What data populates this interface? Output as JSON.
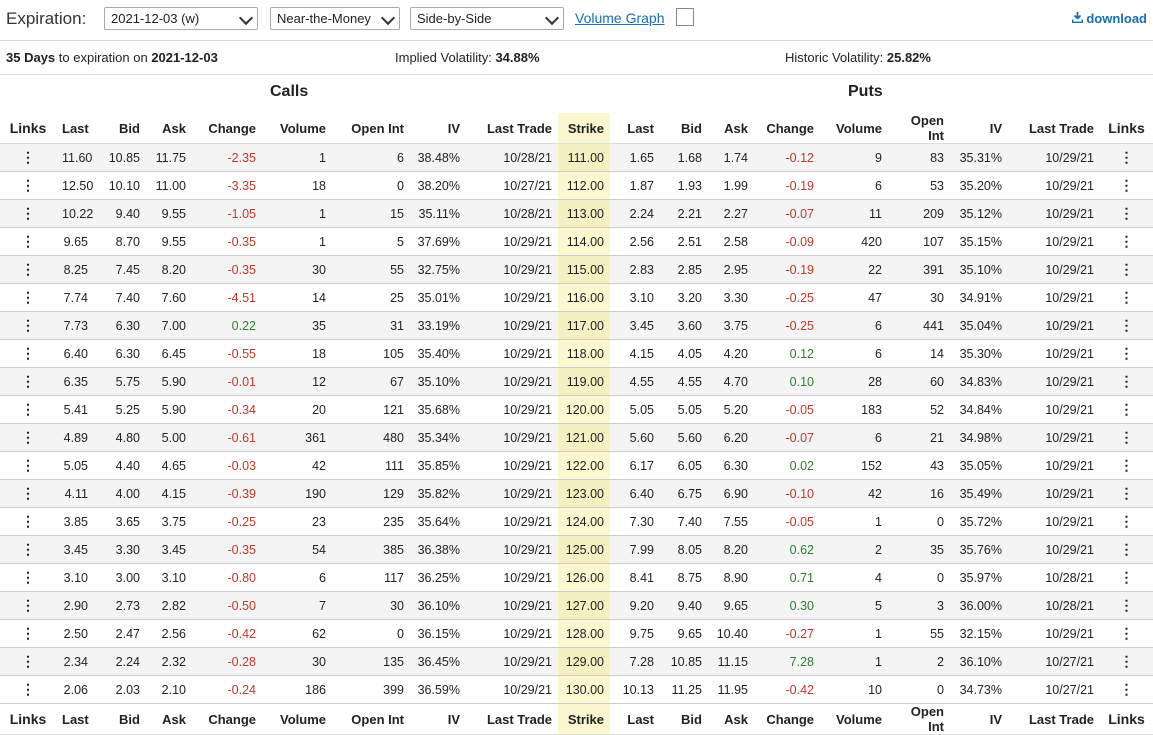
{
  "toolbar": {
    "expiration_label": "Expiration:",
    "expiration_value": "2021-12-03 (w)",
    "range_value": "Near-the-Money",
    "view_value": "Side-by-Side",
    "volume_graph_label": "Volume Graph",
    "download_label": "download"
  },
  "info": {
    "days": "35 Days",
    "to_expiration_text": "to expiration on",
    "expiration_date": "2021-12-03",
    "iv_label": "Implied Volatility:",
    "iv_value": "34.88%",
    "hv_label": "Historic Volatility:",
    "hv_value": "25.82%"
  },
  "sections": {
    "calls": "Calls",
    "puts": "Puts"
  },
  "columns": [
    "Links",
    "Last",
    "Bid",
    "Ask",
    "Change",
    "Volume",
    "Open Int",
    "IV",
    "Last Trade",
    "Strike",
    "Last",
    "Bid",
    "Ask",
    "Change",
    "Volume",
    "Open Int",
    "IV",
    "Last Trade",
    "Links"
  ],
  "links_glyph": "⋮",
  "rows": [
    [
      "11.60",
      "10.85",
      "11.75",
      "-2.35",
      "1",
      "6",
      "38.48%",
      "10/28/21",
      "111.00",
      "1.65",
      "1.68",
      "1.74",
      "-0.12",
      "9",
      "83",
      "35.31%",
      "10/29/21"
    ],
    [
      "12.50",
      "10.10",
      "11.00",
      "-3.35",
      "18",
      "0",
      "38.20%",
      "10/27/21",
      "112.00",
      "1.87",
      "1.93",
      "1.99",
      "-0.19",
      "6",
      "53",
      "35.20%",
      "10/29/21"
    ],
    [
      "10.22",
      "9.40",
      "9.55",
      "-1.05",
      "1",
      "15",
      "35.11%",
      "10/28/21",
      "113.00",
      "2.24",
      "2.21",
      "2.27",
      "-0.07",
      "11",
      "209",
      "35.12%",
      "10/29/21"
    ],
    [
      "9.65",
      "8.70",
      "9.55",
      "-0.35",
      "1",
      "5",
      "37.69%",
      "10/29/21",
      "114.00",
      "2.56",
      "2.51",
      "2.58",
      "-0.09",
      "420",
      "107",
      "35.15%",
      "10/29/21"
    ],
    [
      "8.25",
      "7.45",
      "8.20",
      "-0.35",
      "30",
      "55",
      "32.75%",
      "10/29/21",
      "115.00",
      "2.83",
      "2.85",
      "2.95",
      "-0.19",
      "22",
      "391",
      "35.10%",
      "10/29/21"
    ],
    [
      "7.74",
      "7.40",
      "7.60",
      "-4.51",
      "14",
      "25",
      "35.01%",
      "10/29/21",
      "116.00",
      "3.10",
      "3.20",
      "3.30",
      "-0.25",
      "47",
      "30",
      "34.91%",
      "10/29/21"
    ],
    [
      "7.73",
      "6.30",
      "7.00",
      "0.22",
      "35",
      "31",
      "33.19%",
      "10/29/21",
      "117.00",
      "3.45",
      "3.60",
      "3.75",
      "-0.25",
      "6",
      "441",
      "35.04%",
      "10/29/21"
    ],
    [
      "6.40",
      "6.30",
      "6.45",
      "-0.55",
      "18",
      "105",
      "35.40%",
      "10/29/21",
      "118.00",
      "4.15",
      "4.05",
      "4.20",
      "0.12",
      "6",
      "14",
      "35.30%",
      "10/29/21"
    ],
    [
      "6.35",
      "5.75",
      "5.90",
      "-0.01",
      "12",
      "67",
      "35.10%",
      "10/29/21",
      "119.00",
      "4.55",
      "4.55",
      "4.70",
      "0.10",
      "28",
      "60",
      "34.83%",
      "10/29/21"
    ],
    [
      "5.41",
      "5.25",
      "5.90",
      "-0.34",
      "20",
      "121",
      "35.68%",
      "10/29/21",
      "120.00",
      "5.05",
      "5.05",
      "5.20",
      "-0.05",
      "183",
      "52",
      "34.84%",
      "10/29/21"
    ],
    [
      "4.89",
      "4.80",
      "5.00",
      "-0.61",
      "361",
      "480",
      "35.34%",
      "10/29/21",
      "121.00",
      "5.60",
      "5.60",
      "6.20",
      "-0.07",
      "6",
      "21",
      "34.98%",
      "10/29/21"
    ],
    [
      "5.05",
      "4.40",
      "4.65",
      "-0.03",
      "42",
      "111",
      "35.85%",
      "10/29/21",
      "122.00",
      "6.17",
      "6.05",
      "6.30",
      "0.02",
      "152",
      "43",
      "35.05%",
      "10/29/21"
    ],
    [
      "4.11",
      "4.00",
      "4.15",
      "-0.39",
      "190",
      "129",
      "35.82%",
      "10/29/21",
      "123.00",
      "6.40",
      "6.75",
      "6.90",
      "-0.10",
      "42",
      "16",
      "35.49%",
      "10/29/21"
    ],
    [
      "3.85",
      "3.65",
      "3.75",
      "-0.25",
      "23",
      "235",
      "35.64%",
      "10/29/21",
      "124.00",
      "7.30",
      "7.40",
      "7.55",
      "-0.05",
      "1",
      "0",
      "35.72%",
      "10/29/21"
    ],
    [
      "3.45",
      "3.30",
      "3.45",
      "-0.35",
      "54",
      "385",
      "36.38%",
      "10/29/21",
      "125.00",
      "7.99",
      "8.05",
      "8.20",
      "0.62",
      "2",
      "35",
      "35.76%",
      "10/29/21"
    ],
    [
      "3.10",
      "3.00",
      "3.10",
      "-0.80",
      "6",
      "117",
      "36.25%",
      "10/29/21",
      "126.00",
      "8.41",
      "8.75",
      "8.90",
      "0.71",
      "4",
      "0",
      "35.97%",
      "10/28/21"
    ],
    [
      "2.90",
      "2.73",
      "2.82",
      "-0.50",
      "7",
      "30",
      "36.10%",
      "10/29/21",
      "127.00",
      "9.20",
      "9.40",
      "9.65",
      "0.30",
      "5",
      "3",
      "36.00%",
      "10/28/21"
    ],
    [
      "2.50",
      "2.47",
      "2.56",
      "-0.42",
      "62",
      "0",
      "36.15%",
      "10/29/21",
      "128.00",
      "9.75",
      "9.65",
      "10.40",
      "-0.27",
      "1",
      "55",
      "32.15%",
      "10/29/21"
    ],
    [
      "2.34",
      "2.24",
      "2.32",
      "-0.28",
      "30",
      "135",
      "36.45%",
      "10/29/21",
      "129.00",
      "7.28",
      "10.85",
      "11.15",
      "7.28",
      "1",
      "2",
      "36.10%",
      "10/27/21"
    ],
    [
      "2.06",
      "2.03",
      "2.10",
      "-0.24",
      "186",
      "399",
      "36.59%",
      "10/29/21",
      "130.00",
      "10.13",
      "11.25",
      "11.95",
      "-0.42",
      "10",
      "0",
      "34.73%",
      "10/27/21"
    ]
  ]
}
